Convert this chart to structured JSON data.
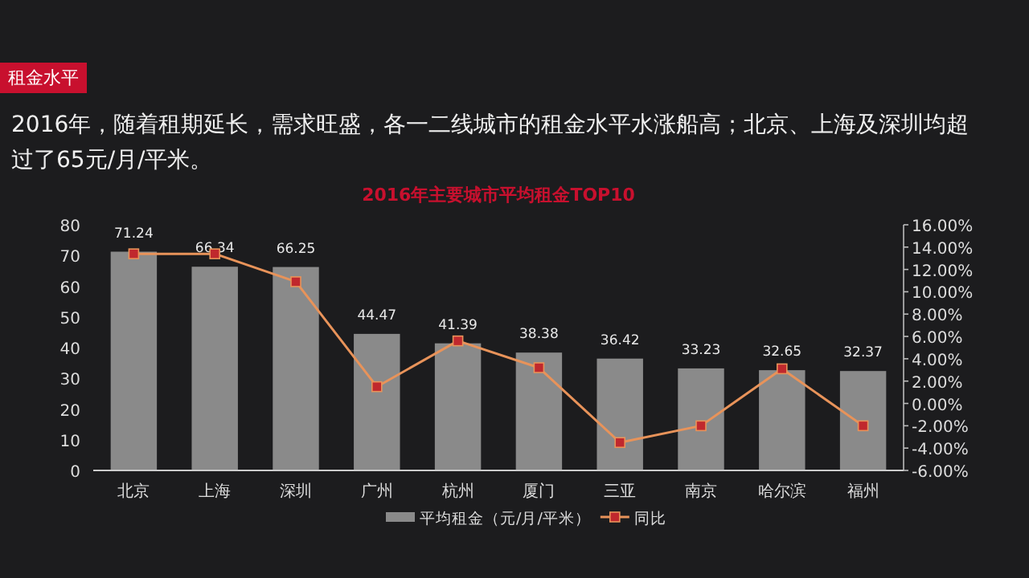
{
  "chart_data": {
    "type": "bar",
    "title": "2016年主要城市平均租金TOP10",
    "subtitle": "2016年，随着租期延长，需求旺盛，各一二线城市的租金水平水涨船高；北京、上海及深圳均超过了65元/月/平米。",
    "annotations": [
      "租金水平"
    ],
    "categories": [
      "北京",
      "上海",
      "深圳",
      "广州",
      "杭州",
      "厦门",
      "三亚",
      "南京",
      "哈尔滨",
      "福州"
    ],
    "series": [
      {
        "name": "平均租金（元/月/平米）",
        "color": "#8a8a8a",
        "values": [
          71.24,
          66.34,
          66.25,
          44.47,
          41.39,
          38.38,
          36.42,
          33.23,
          32.65,
          32.37
        ],
        "value_labels": [
          "71.24",
          "66.34",
          "66.25",
          "44.47",
          "41.39",
          "38.38",
          "36.42",
          "33.23",
          "32.65",
          "32.37"
        ]
      },
      {
        "name": "同比",
        "type": "line",
        "axis": "y2",
        "color": "#e8935a",
        "marker": "square",
        "values": [
          13.4,
          13.4,
          10.9,
          1.5,
          5.6,
          3.2,
          -3.5,
          -2.0,
          3.1,
          -2.0
        ]
      }
    ],
    "ylim": [
      0,
      80
    ],
    "yticks": [
      0,
      10,
      20,
      30,
      40,
      50,
      60,
      70,
      80
    ],
    "y2lim": [
      -6,
      16
    ],
    "y2ticks": [
      {
        "value": -6,
        "label": "-6.00%"
      },
      {
        "value": -4,
        "label": "-4.00%"
      },
      {
        "value": -2,
        "label": "-2.00%"
      },
      {
        "value": 0,
        "label": "0.00%"
      },
      {
        "value": 2,
        "label": "2.00%"
      },
      {
        "value": 4,
        "label": "4.00%"
      },
      {
        "value": 6,
        "label": "6.00%"
      },
      {
        "value": 8,
        "label": "8.00%"
      },
      {
        "value": 10,
        "label": "10.00%"
      },
      {
        "value": 12,
        "label": "12.00%"
      },
      {
        "value": 14,
        "label": "14.00%"
      },
      {
        "value": 16,
        "label": "16.00%"
      }
    ],
    "grid": false,
    "legend": "bottom",
    "line_style": "solid"
  }
}
